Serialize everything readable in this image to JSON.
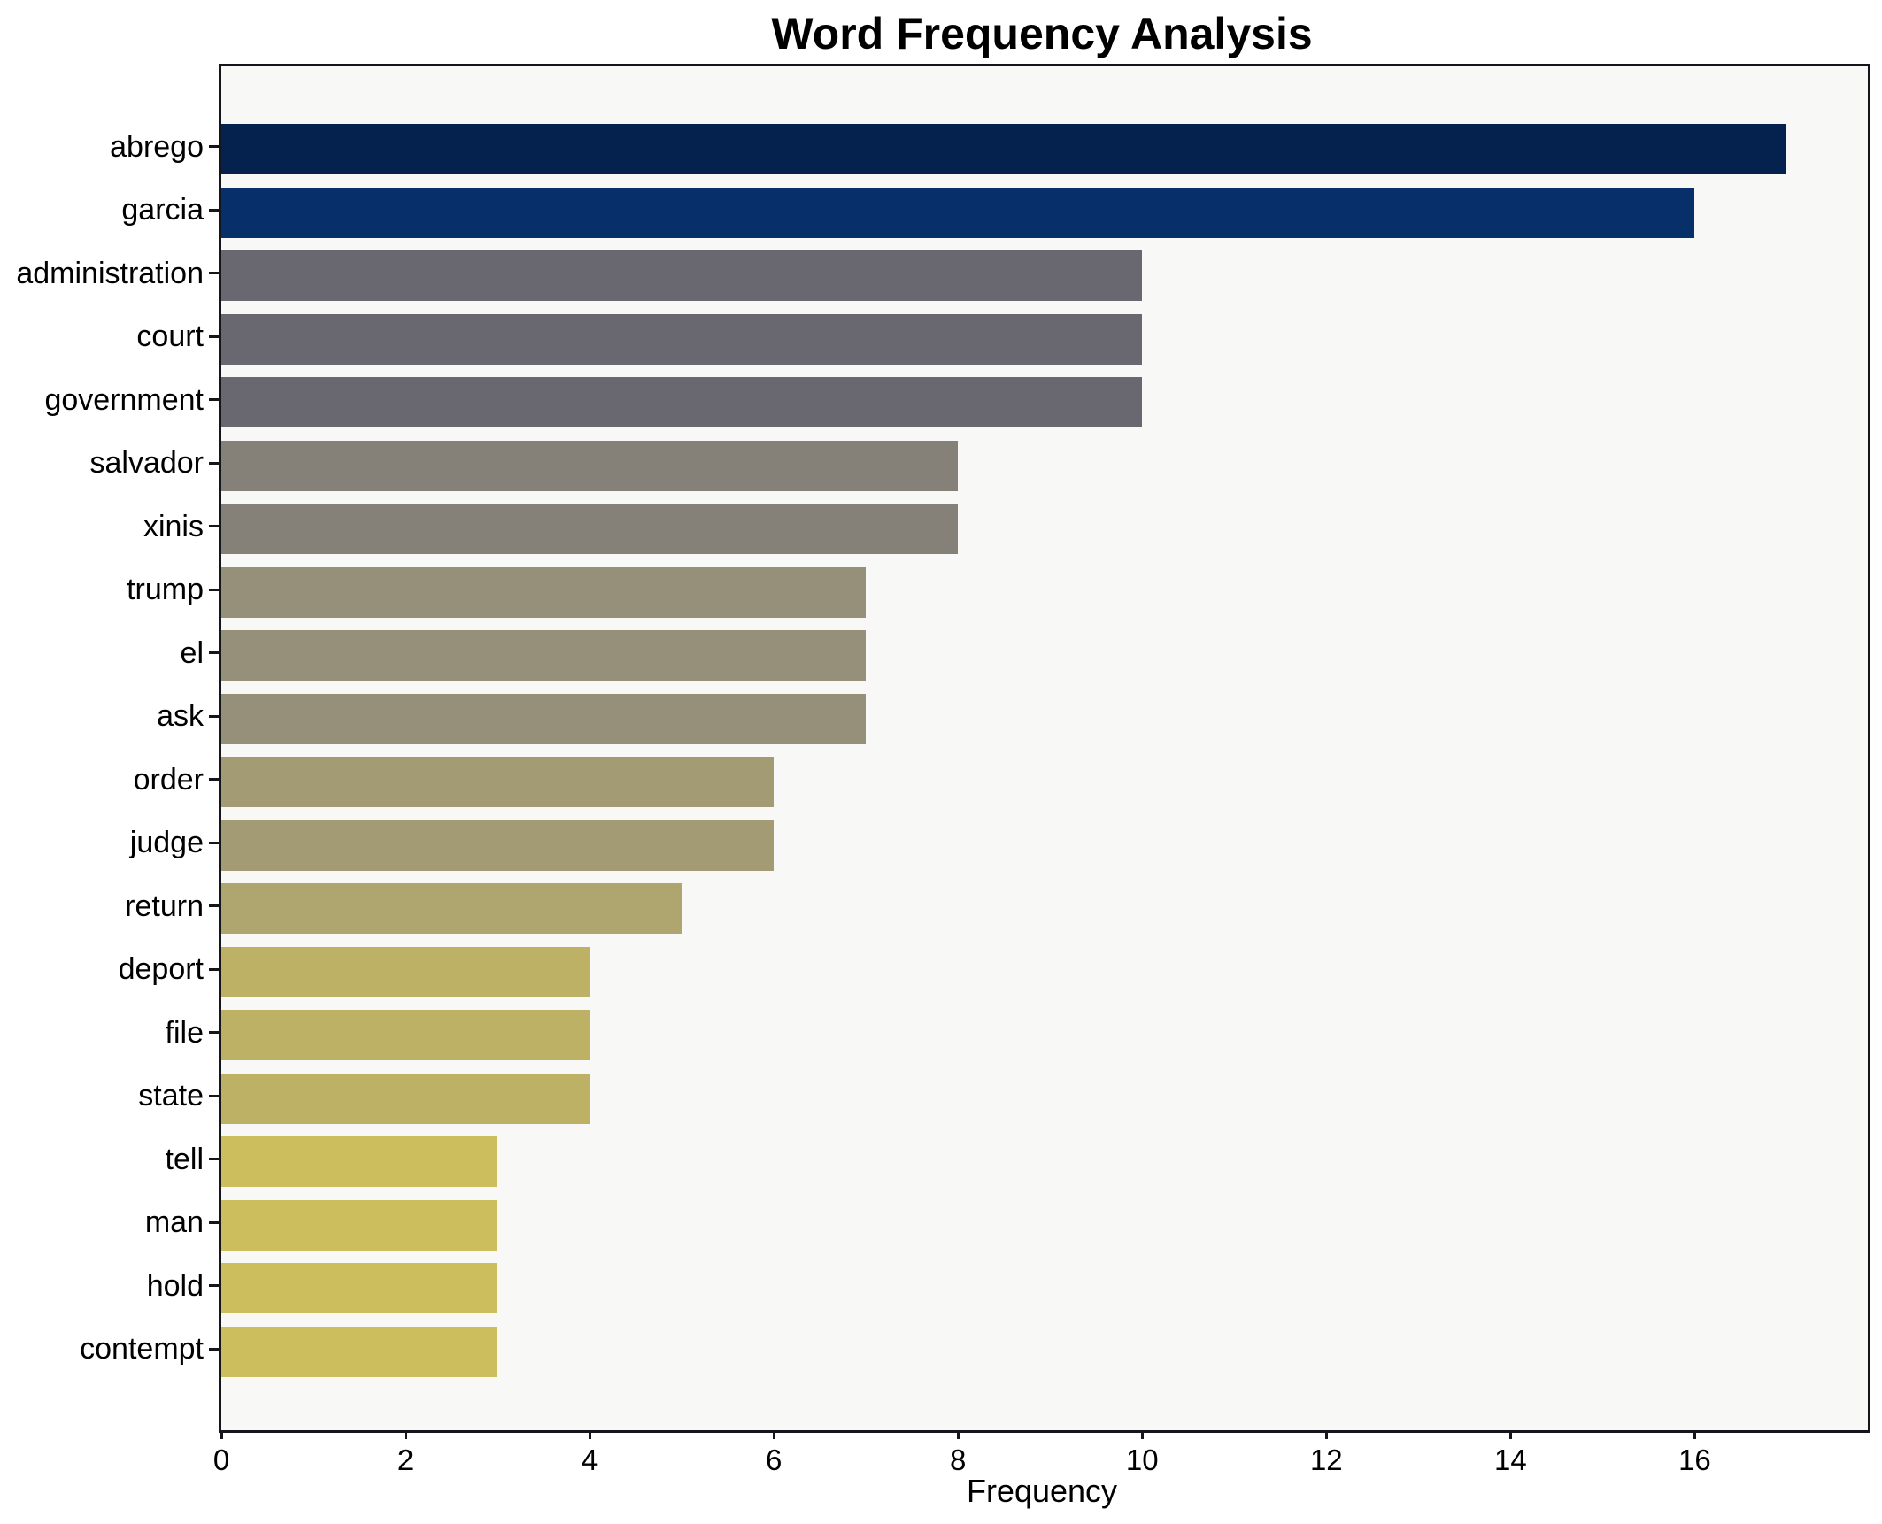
{
  "title": "Word Frequency Analysis",
  "chart_data": {
    "type": "bar",
    "orientation": "horizontal",
    "title": "Word Frequency Analysis",
    "xlabel": "Frequency",
    "ylabel": "",
    "categories": [
      "abrego",
      "garcia",
      "administration",
      "court",
      "government",
      "salvador",
      "xinis",
      "trump",
      "el",
      "ask",
      "order",
      "judge",
      "return",
      "deport",
      "file",
      "state",
      "tell",
      "man",
      "hold",
      "contempt"
    ],
    "values": [
      17,
      16,
      10,
      10,
      10,
      8,
      8,
      7,
      7,
      7,
      6,
      6,
      5,
      4,
      4,
      4,
      3,
      3,
      3,
      3
    ],
    "bar_colors": [
      "#05224e",
      "#07306a",
      "#696870",
      "#696870",
      "#696870",
      "#858178",
      "#858178",
      "#96907a",
      "#96907a",
      "#96907a",
      "#a39b73",
      "#a39b73",
      "#aea56f",
      "#bdb166",
      "#bdb166",
      "#bdb166",
      "#ccbd5d",
      "#ccbd5d",
      "#ccbd5d",
      "#ccbd5d"
    ],
    "xlim": [
      0,
      17.88
    ],
    "xticks": [
      0,
      2,
      4,
      6,
      8,
      10,
      12,
      14,
      16
    ],
    "grid": false,
    "legend": null,
    "axes_background": "#f8f8f7",
    "figure_background": "#ffffff",
    "spine_color": "#15151c",
    "text_color": "#000000"
  }
}
